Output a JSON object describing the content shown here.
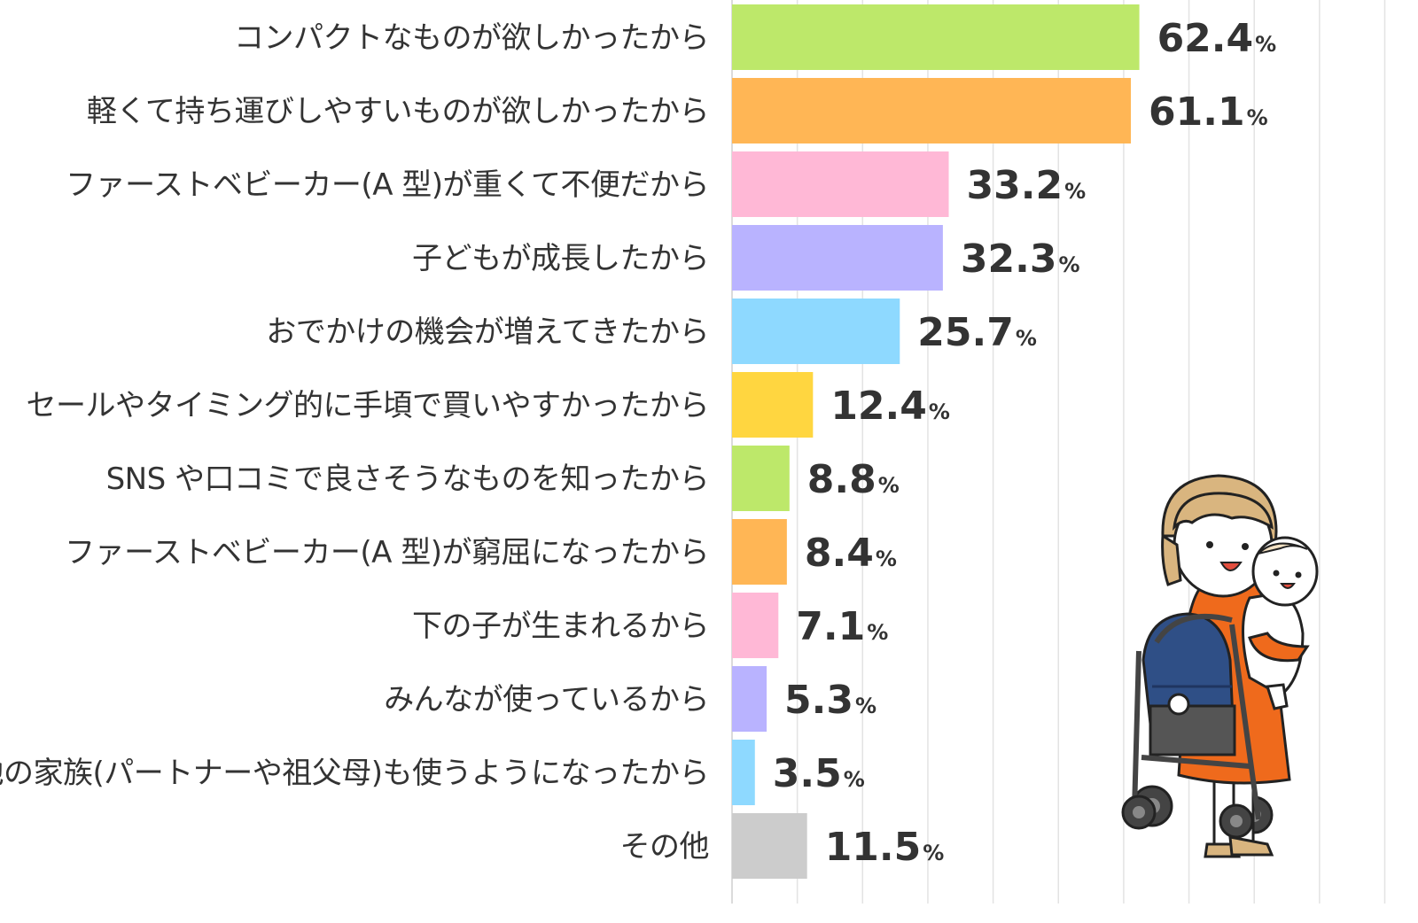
{
  "chart_data": {
    "type": "bar",
    "orientation": "horizontal",
    "categories": [
      "コンパクトなものが欲しかったから",
      "軽くて持ち運びしやすいものが欲しかったから",
      "ファーストベビーカー(A 型)が重くて不便だから",
      "子どもが成長したから",
      "おでかけの機会が増えてきたから",
      "セールやタイミング的に手頃で買いやすかったから",
      "SNS や口コミで良さそうなものを知ったから",
      "ファーストベビーカー(A 型)が窮屈になったから",
      "下の子が生まれるから",
      "みんなが使っているから",
      "他の家族(パートナーや祖父母)も使うようになったから",
      "その他"
    ],
    "values": [
      62.4,
      61.1,
      33.2,
      32.3,
      25.7,
      12.4,
      8.8,
      8.4,
      7.1,
      5.3,
      3.5,
      11.5
    ],
    "value_labels": [
      "62.4",
      "61.1",
      "33.2",
      "32.3",
      "25.7",
      "12.4",
      "8.8",
      "8.4",
      "7.1",
      "5.3",
      "3.5",
      "11.5"
    ],
    "unit": "%",
    "colors": [
      "#bde86a",
      "#ffb655",
      "#ffb8d6",
      "#b9b3ff",
      "#8ed9ff",
      "#ffd640",
      "#bde86a",
      "#ffb655",
      "#ffb8d6",
      "#b9b3ff",
      "#8ed9ff",
      "#cccccc"
    ],
    "xlim": [
      0,
      100
    ],
    "grid": true,
    "grid_step": 10,
    "legend": "none"
  },
  "illustration": {
    "name": "mother-holding-baby-with-stroller",
    "colors": {
      "hair": "#d9b57f",
      "dress": "#ef6a1c",
      "stroller_seat": "#2f4f86",
      "stroller_frame": "#444444",
      "skin": "#ffffff",
      "outline": "#222222"
    }
  }
}
